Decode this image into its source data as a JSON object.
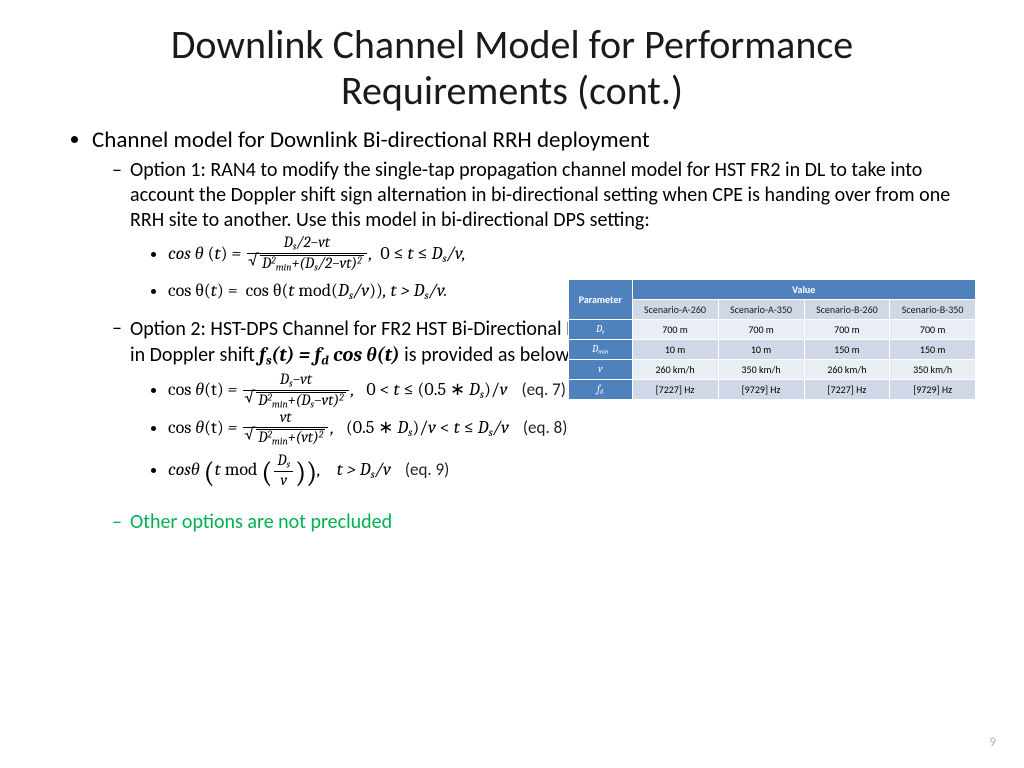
{
  "title": "Downlink Channel Model for Performance Requirements (cont.)",
  "bullet_main": "Channel model for Downlink Bi-directional RRH deployment",
  "option1_text": "Option 1: RAN4 to modify the single-tap propagation channel model for HST FR2 in DL to take into account the Doppler shift sign alternation in bi-directional setting when CPE is handing over from one RRH site to another. Use this model in bi-directional DPS setting:",
  "option2_text_pre": "Option 2: HST-DPS Channel for FR2 HST Bi-Directional RRH Deployment. the cosine of angle ",
  "option2_text_mid": " used in Doppler shift ",
  "option2_text_post": " is provided as below:",
  "eq7_label": "(eq. 7)",
  "eq8_label": "(eq. 8)",
  "eq9_label": "(eq. 9)",
  "green_text": "Other options are not precluded",
  "page_number": "9",
  "table": {
    "header_param": "Parameter",
    "header_value": "Value",
    "scen_cols": [
      "Scenario-A-260",
      "Scenario-A-350",
      "Scenario-B-260",
      "Scenario-B-350"
    ],
    "rows": [
      {
        "param": "D",
        "sub": "s",
        "vals": [
          "700 m",
          "700 m",
          "700 m",
          "700 m"
        ]
      },
      {
        "param": "D",
        "sub": "min",
        "vals": [
          "10 m",
          "10 m",
          "150 m",
          "150 m"
        ]
      },
      {
        "param": "v",
        "sub": "",
        "vals": [
          "260 km/h",
          "350 km/h",
          "260 km/h",
          "350 km/h"
        ]
      },
      {
        "param": "f",
        "sub": "d",
        "vals": [
          "[7227] Hz",
          "[9729] Hz",
          "[7227] Hz",
          "[9729] Hz"
        ]
      }
    ],
    "colors": {
      "header_bg": "#4f81bd",
      "header_fg": "#ffffff",
      "row_a": "#d0d8e8",
      "row_b": "#e9edf4",
      "border": "#ffffff"
    }
  }
}
